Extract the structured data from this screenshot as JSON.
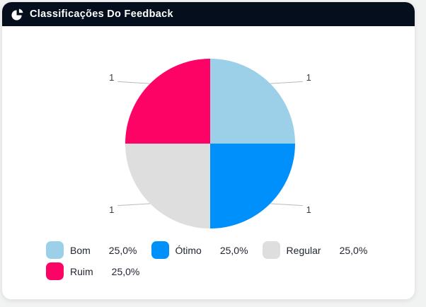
{
  "header": {
    "title": "Classificações Do Feedback",
    "icon": "pie-chart-icon"
  },
  "chart_data": {
    "type": "pie",
    "title": "Classificações Do Feedback",
    "categories": [
      "Bom",
      "Ótimo",
      "Regular",
      "Ruim"
    ],
    "values": [
      1,
      1,
      1,
      1
    ],
    "percent_labels": [
      "25,0%",
      "25,0%",
      "25,0%",
      "25,0%"
    ],
    "data_labels": [
      "1",
      "1",
      "1",
      "1"
    ],
    "slice_colors": [
      "#9BD0E8",
      "#0090FC",
      "#DEDEDE",
      "#FD0366"
    ],
    "legend_position": "bottom",
    "start_angle_deg": -90,
    "direction": "clockwise"
  },
  "colors": {
    "header_bg": "#040E1C",
    "card_bg": "#FFFFFF",
    "page_bg": "#F1F2F2",
    "data_label_text": "#373D3F",
    "legend_text": "#212631",
    "connector_line": "#BBBBBB"
  }
}
